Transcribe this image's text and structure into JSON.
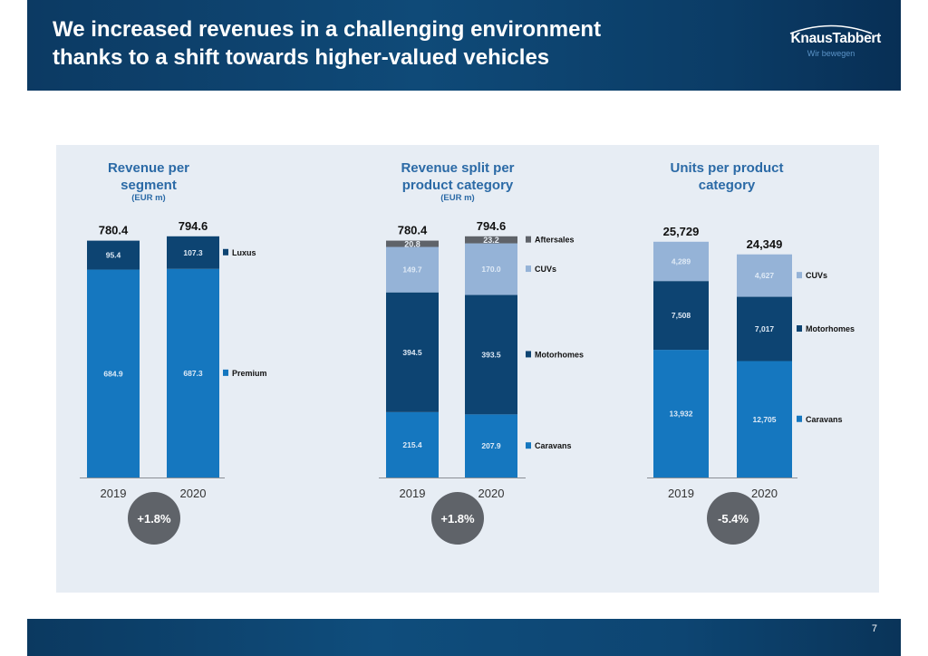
{
  "header": {
    "title_line1": "We increased revenues in a challenging environment",
    "title_line2": "thanks to a shift towards higher-valued vehicles",
    "logo_name": "KnausTabbert",
    "logo_tagline": "Wir bewegen"
  },
  "footer": {
    "page_number": "7"
  },
  "colors": {
    "luxus": "#0d4472",
    "premium": "#1577bf",
    "caravans": "#1577bf",
    "motorhomes": "#0d4472",
    "cuvs": "#95b3d7",
    "aftersales": "#5f6369",
    "growth_badge": "#5f6369",
    "title_blue": "#2b6aa6"
  },
  "chart_data": [
    {
      "type": "bar",
      "stacked": true,
      "title_line1": "Revenue per",
      "title_line2": "segment",
      "unit": "(EUR m)",
      "categories": [
        "2019",
        "2020"
      ],
      "totals": [
        "780.4",
        "794.6"
      ],
      "total_values": [
        780.4,
        794.6
      ],
      "series": [
        {
          "name": "Premium",
          "values": [
            684.9,
            687.3
          ],
          "labels": [
            "684.9",
            "687.3"
          ],
          "color_key": "premium"
        },
        {
          "name": "Luxus",
          "values": [
            95.4,
            107.3
          ],
          "labels": [
            "95.4",
            "107.3"
          ],
          "color_key": "luxus"
        }
      ],
      "growth": "+1.8%",
      "ylim": [
        0,
        800
      ],
      "legend": "right"
    },
    {
      "type": "bar",
      "stacked": true,
      "title_line1": "Revenue split per",
      "title_line2": "product category",
      "unit": "(EUR m)",
      "categories": [
        "2019",
        "2020"
      ],
      "totals": [
        "780.4",
        "794.6"
      ],
      "total_values": [
        780.4,
        794.6
      ],
      "series": [
        {
          "name": "Caravans",
          "values": [
            215.4,
            207.9
          ],
          "labels": [
            "215.4",
            "207.9"
          ],
          "color_key": "caravans"
        },
        {
          "name": "Motorhomes",
          "values": [
            394.5,
            393.5
          ],
          "labels": [
            "394.5",
            "393.5"
          ],
          "color_key": "motorhomes"
        },
        {
          "name": "CUVs",
          "values": [
            149.7,
            170.0
          ],
          "labels": [
            "149.7",
            "170.0"
          ],
          "color_key": "cuvs"
        },
        {
          "name": "Aftersales",
          "values": [
            20.8,
            23.2
          ],
          "labels": [
            "20.8",
            "23.2"
          ],
          "color_key": "aftersales"
        }
      ],
      "growth": "+1.8%",
      "ylim": [
        0,
        800
      ],
      "legend": "right"
    },
    {
      "type": "bar",
      "stacked": true,
      "title_line1": "Units per product",
      "title_line2": "category",
      "unit": "",
      "categories": [
        "2019",
        "2020"
      ],
      "totals": [
        "25,729",
        "24,349"
      ],
      "total_values": [
        25729,
        24349
      ],
      "series": [
        {
          "name": "Caravans",
          "values": [
            13932,
            12705
          ],
          "labels": [
            "13,932",
            "12,705"
          ],
          "color_key": "caravans"
        },
        {
          "name": "Motorhomes",
          "values": [
            7508,
            7017
          ],
          "labels": [
            "7,508",
            "7,017"
          ],
          "color_key": "motorhomes"
        },
        {
          "name": "CUVs",
          "values": [
            4289,
            4627
          ],
          "labels": [
            "4,289",
            "4,627"
          ],
          "color_key": "cuvs"
        }
      ],
      "growth": "-5.4%",
      "ylim": [
        0,
        26500
      ],
      "legend": "right"
    }
  ]
}
